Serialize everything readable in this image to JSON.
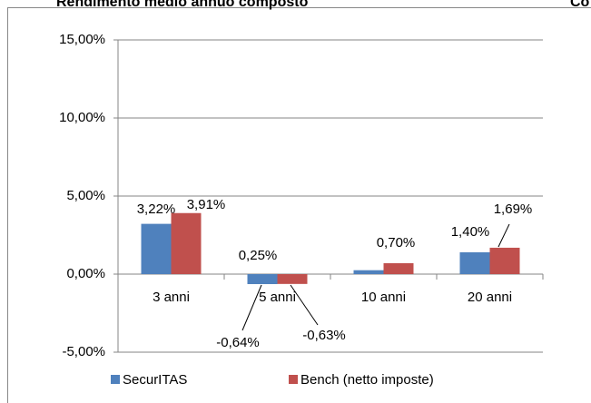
{
  "chart_data": {
    "type": "bar",
    "title": "Rendimento medio annuo composto",
    "subtitle": "Co",
    "categories": [
      "3 anni",
      "5 anni",
      "10 anni",
      "20 anni"
    ],
    "series": [
      {
        "name": "SecurITAS",
        "color": "#4f81bd",
        "values": [
          3.22,
          -0.64,
          0.25,
          1.4
        ],
        "value_labels": [
          "3,22%",
          "-0,64%",
          "0,25%",
          "1,40%"
        ]
      },
      {
        "name": "Bench (netto imposte)",
        "color": "#c0504d",
        "values": [
          3.91,
          -0.63,
          0.7,
          1.69
        ],
        "value_labels": [
          "3,91%",
          "-0,63%",
          "0,70%",
          "1,69%"
        ]
      }
    ],
    "ylim": [
      -5,
      15
    ],
    "yticks": [
      {
        "value": -5,
        "label": "-5,00%"
      },
      {
        "value": 0,
        "label": "0,00%"
      },
      {
        "value": 5,
        "label": "5,00%"
      },
      {
        "value": 10,
        "label": "10,00%"
      },
      {
        "value": 15,
        "label": "15,00%"
      }
    ],
    "grid": true,
    "legend": "bottom"
  }
}
